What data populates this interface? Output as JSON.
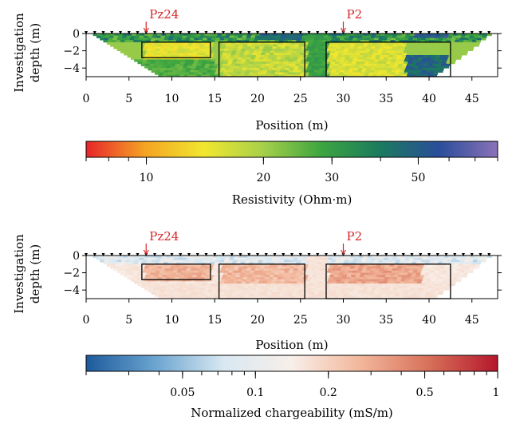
{
  "chart_data": [
    {
      "type": "heatmap",
      "kind": "resistivity-section",
      "xlabel": "Position (m)",
      "ylabel": "Investigation depth (m)",
      "xlim": [
        0,
        48
      ],
      "ylim": [
        -5,
        0
      ],
      "xticks": [
        "0",
        "5",
        "10",
        "15",
        "20",
        "25",
        "30",
        "35",
        "40",
        "45"
      ],
      "yticks": [
        "0",
        "−2",
        "−4"
      ],
      "markers": [
        {
          "label": "Pz24",
          "x": 7
        },
        {
          "label": "P2",
          "x": 30
        }
      ],
      "boxes": [
        {
          "x0": 6.5,
          "x1": 14.5,
          "y0": -1.0,
          "y1": -2.8
        },
        {
          "x0": 15.5,
          "x1": 25.5,
          "y0": -1.0,
          "y1": -5.0
        },
        {
          "x0": 28.0,
          "x1": 42.5,
          "y0": -1.0,
          "y1": -5.0
        }
      ],
      "colorbar": {
        "label": "Resistivity (Ohm·m)",
        "scale": "log",
        "range": [
          7,
          80
        ],
        "ticks": [
          "10",
          "20",
          "30",
          "50"
        ],
        "tick_values": [
          10,
          20,
          30,
          50
        ],
        "colors": [
          "#e8252b",
          "#f4a423",
          "#f2e72e",
          "#a7d04a",
          "#3da540",
          "#1b7a5e",
          "#2a4d9b",
          "#8a72b8"
        ]
      }
    },
    {
      "type": "heatmap",
      "kind": "chargeability-section",
      "xlabel": "Position (m)",
      "ylabel": "Investigation depth (m)",
      "xlim": [
        0,
        48
      ],
      "ylim": [
        -5,
        0
      ],
      "xticks": [
        "0",
        "5",
        "10",
        "15",
        "20",
        "25",
        "30",
        "35",
        "40",
        "45"
      ],
      "yticks": [
        "0",
        "−2",
        "−4"
      ],
      "markers": [
        {
          "label": "Pz24",
          "x": 7
        },
        {
          "label": "P2",
          "x": 30
        }
      ],
      "boxes": [
        {
          "x0": 6.5,
          "x1": 14.5,
          "y0": -1.0,
          "y1": -2.8
        },
        {
          "x0": 15.5,
          "x1": 25.5,
          "y0": -1.0,
          "y1": -5.0
        },
        {
          "x0": 28.0,
          "x1": 42.5,
          "y0": -1.0,
          "y1": -5.0
        }
      ],
      "colorbar": {
        "label": "Normalized chargeability (mS/m)",
        "scale": "log",
        "range": [
          0.02,
          1
        ],
        "ticks": [
          "0.05",
          "0.1",
          "0.2",
          "0.5",
          "1"
        ],
        "tick_values": [
          0.05,
          0.1,
          0.2,
          0.5,
          1
        ],
        "colors": [
          "#1d5a9c",
          "#6aa4cf",
          "#d8e8f2",
          "#f8efe9",
          "#f2b79b",
          "#d77059",
          "#b5172c"
        ]
      }
    }
  ]
}
